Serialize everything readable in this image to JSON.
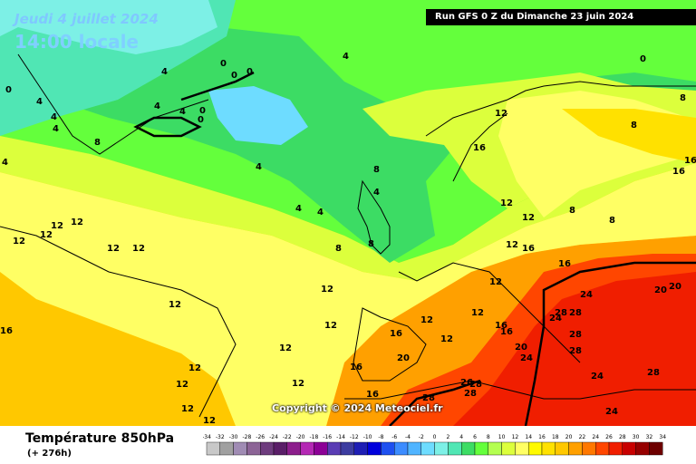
{
  "header": {
    "date": "Jeudi 4 juillet 2024",
    "local_time": "14:00 locale",
    "run_info": "Run GFS 0 Z du Dimanche 23 juin 2024"
  },
  "copyright": "Copyright © 2024 Meteociel.fr",
  "footer": {
    "variable_title": "Température 850hPa",
    "lead_time": "(+ 276h)"
  },
  "legend": {
    "ticks": [
      "-34",
      "-32",
      "-30",
      "-28",
      "-26",
      "-24",
      "-22",
      "-20",
      "-18",
      "-16",
      "-14",
      "-12",
      "-10",
      "-8",
      "-6",
      "-4",
      "-2",
      "0",
      "2",
      "4",
      "6",
      "8",
      "10",
      "12",
      "14",
      "16",
      "18",
      "20",
      "22",
      "24",
      "26",
      "28",
      "30",
      "32",
      "34"
    ],
    "colors": [
      "#c8c8c8",
      "#a0a0a0",
      "#a08cb4",
      "#8c6496",
      "#6e3c7e",
      "#5a1e68",
      "#8c1e8c",
      "#b428b4",
      "#8c0096",
      "#5a3cb4",
      "#3c3ca0",
      "#1e1eb4",
      "#0000dc",
      "#1e50f0",
      "#3c8cff",
      "#50b4ff",
      "#6edcff",
      "#7df0e6",
      "#50e6b4",
      "#3cdc64",
      "#64ff3c",
      "#b4ff50",
      "#dcff3c",
      "#ffff64",
      "#fffa00",
      "#ffe100",
      "#ffc800",
      "#ffa000",
      "#ff7800",
      "#ff4600",
      "#f01e00",
      "#c80000",
      "#960000",
      "#6e0000"
    ]
  },
  "map_labels": {
    "greenland": [
      "0",
      "0",
      "0",
      "0",
      "0",
      "4",
      "4",
      "4",
      "8",
      "4",
      "4",
      "0"
    ],
    "atlantic_north": [
      "4",
      "4",
      "4",
      "4",
      "4",
      "4",
      "4",
      "8",
      "8"
    ],
    "atlantic_south": [
      "12",
      "12",
      "12",
      "12",
      "12",
      "12",
      "12",
      "12",
      "12",
      "12",
      "12",
      "12",
      "12",
      "12",
      "16",
      "12"
    ],
    "europe": [
      "12",
      "16",
      "12",
      "12",
      "8",
      "8",
      "12",
      "16",
      "12",
      "12",
      "12",
      "12",
      "16",
      "16",
      "16",
      "20",
      "16",
      "16",
      "20",
      "24",
      "26",
      "28",
      "28",
      "28"
    ],
    "east": [
      "24",
      "24",
      "28",
      "28",
      "28",
      "28",
      "24",
      "28",
      "24",
      "20",
      "20",
      "16",
      "16",
      "8",
      "8",
      "8",
      "0",
      "16"
    ]
  }
}
